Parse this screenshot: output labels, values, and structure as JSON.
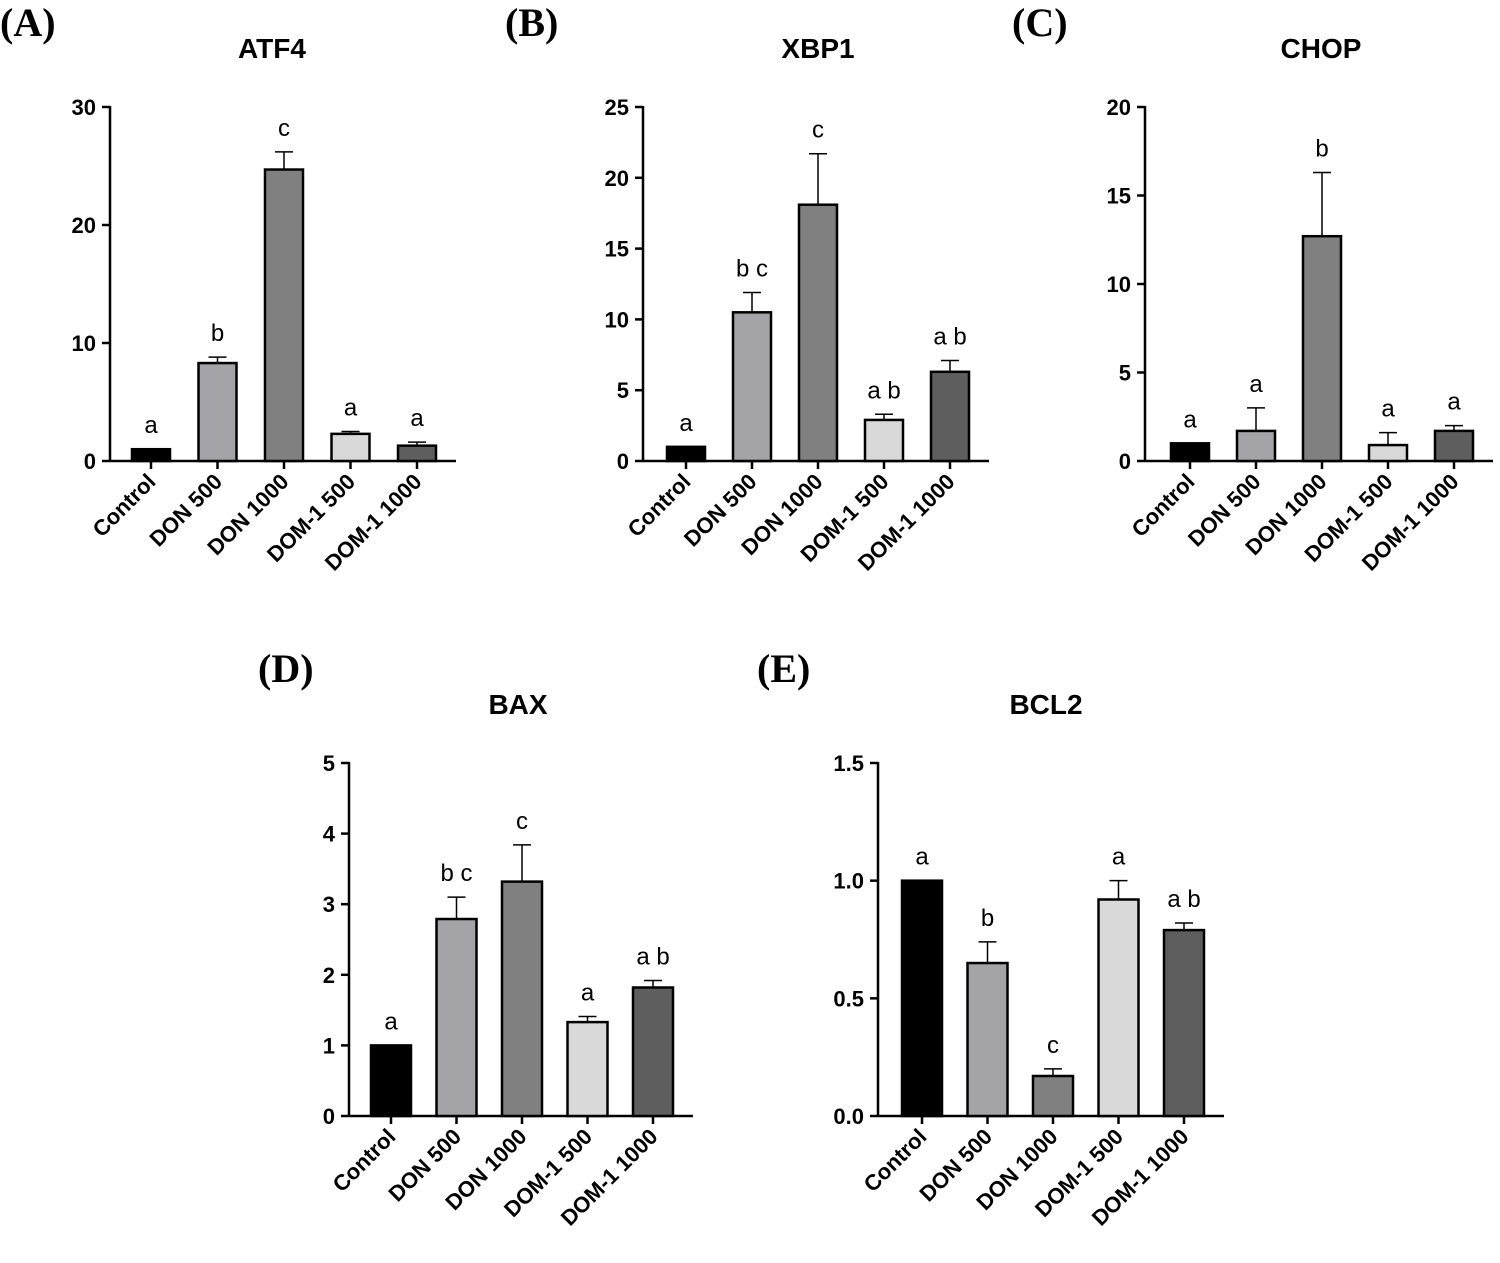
{
  "chart_data": [
    {
      "type": "bar",
      "panel": "(A)",
      "title": "ATF4",
      "categories": [
        "Control",
        "DON 500",
        "DON 1000",
        "DOM-1 500",
        "DOM-1 1000"
      ],
      "values": [
        1.0,
        8.3,
        24.7,
        2.3,
        1.3
      ],
      "errors": [
        0.0,
        0.5,
        1.5,
        0.2,
        0.3
      ],
      "letters": [
        "a",
        "b",
        "c",
        "a",
        "a"
      ],
      "yticks": [
        "0",
        "10",
        "20",
        "30"
      ],
      "ylim": [
        0,
        30
      ],
      "colors": [
        "#000000",
        "#a3a3a8",
        "#808080",
        "#d9d9d9",
        "#5e5e5e"
      ]
    },
    {
      "type": "bar",
      "panel": "(B)",
      "title": "XBP1",
      "categories": [
        "Control",
        "DON 500",
        "DON 1000",
        "DOM-1 500",
        "DOM-1 1000"
      ],
      "values": [
        1.0,
        10.5,
        18.1,
        2.9,
        6.3
      ],
      "errors": [
        0.0,
        1.4,
        3.6,
        0.4,
        0.8
      ],
      "letters": [
        "a",
        "b c",
        "c",
        "a b",
        "a b"
      ],
      "yticks": [
        "0",
        "5",
        "10",
        "15",
        "20",
        "25"
      ],
      "ylim": [
        0,
        25
      ],
      "colors": [
        "#000000",
        "#a3a3a8",
        "#808080",
        "#d9d9d9",
        "#5e5e5e"
      ]
    },
    {
      "type": "bar",
      "panel": "(C)",
      "title": "CHOP",
      "categories": [
        "Control",
        "DON 500",
        "DON 1000",
        "DOM-1 500",
        "DOM-1 1000"
      ],
      "values": [
        1.0,
        1.7,
        12.7,
        0.9,
        1.7
      ],
      "errors": [
        0.0,
        1.3,
        3.6,
        0.7,
        0.3
      ],
      "letters": [
        "a",
        "a",
        "b",
        "a",
        "a"
      ],
      "yticks": [
        "0",
        "5",
        "10",
        "15",
        "20"
      ],
      "ylim": [
        0,
        20
      ],
      "colors": [
        "#000000",
        "#a3a3a8",
        "#808080",
        "#d9d9d9",
        "#5e5e5e"
      ]
    },
    {
      "type": "bar",
      "panel": "(D)",
      "title": "BAX",
      "categories": [
        "Control",
        "DON 500",
        "DON 1000",
        "DOM-1 500",
        "DOM-1 1000"
      ],
      "values": [
        1.0,
        2.79,
        3.32,
        1.33,
        1.82
      ],
      "errors": [
        0.0,
        0.31,
        0.52,
        0.08,
        0.1
      ],
      "letters": [
        "a",
        "b c",
        "c",
        "a",
        "a b"
      ],
      "yticks": [
        "0",
        "1",
        "2",
        "3",
        "4",
        "5"
      ],
      "ylim": [
        0,
        5
      ],
      "colors": [
        "#000000",
        "#a3a3a8",
        "#808080",
        "#d9d9d9",
        "#5e5e5e"
      ]
    },
    {
      "type": "bar",
      "panel": "(E)",
      "title": "BCL2",
      "categories": [
        "Control",
        "DON 500",
        "DON 1000",
        "DOM-1 500",
        "DOM-1 1000"
      ],
      "values": [
        1.0,
        0.65,
        0.17,
        0.92,
        0.79
      ],
      "errors": [
        0.0,
        0.09,
        0.03,
        0.08,
        0.03
      ],
      "letters": [
        "a",
        "b",
        "c",
        "a",
        "a b"
      ],
      "yticks": [
        "0.0",
        "0.5",
        "1.0",
        "1.5"
      ],
      "ylim": [
        0,
        1.5
      ],
      "colors": [
        "#000000",
        "#a3a3a8",
        "#808080",
        "#d9d9d9",
        "#5e5e5e"
      ]
    }
  ]
}
